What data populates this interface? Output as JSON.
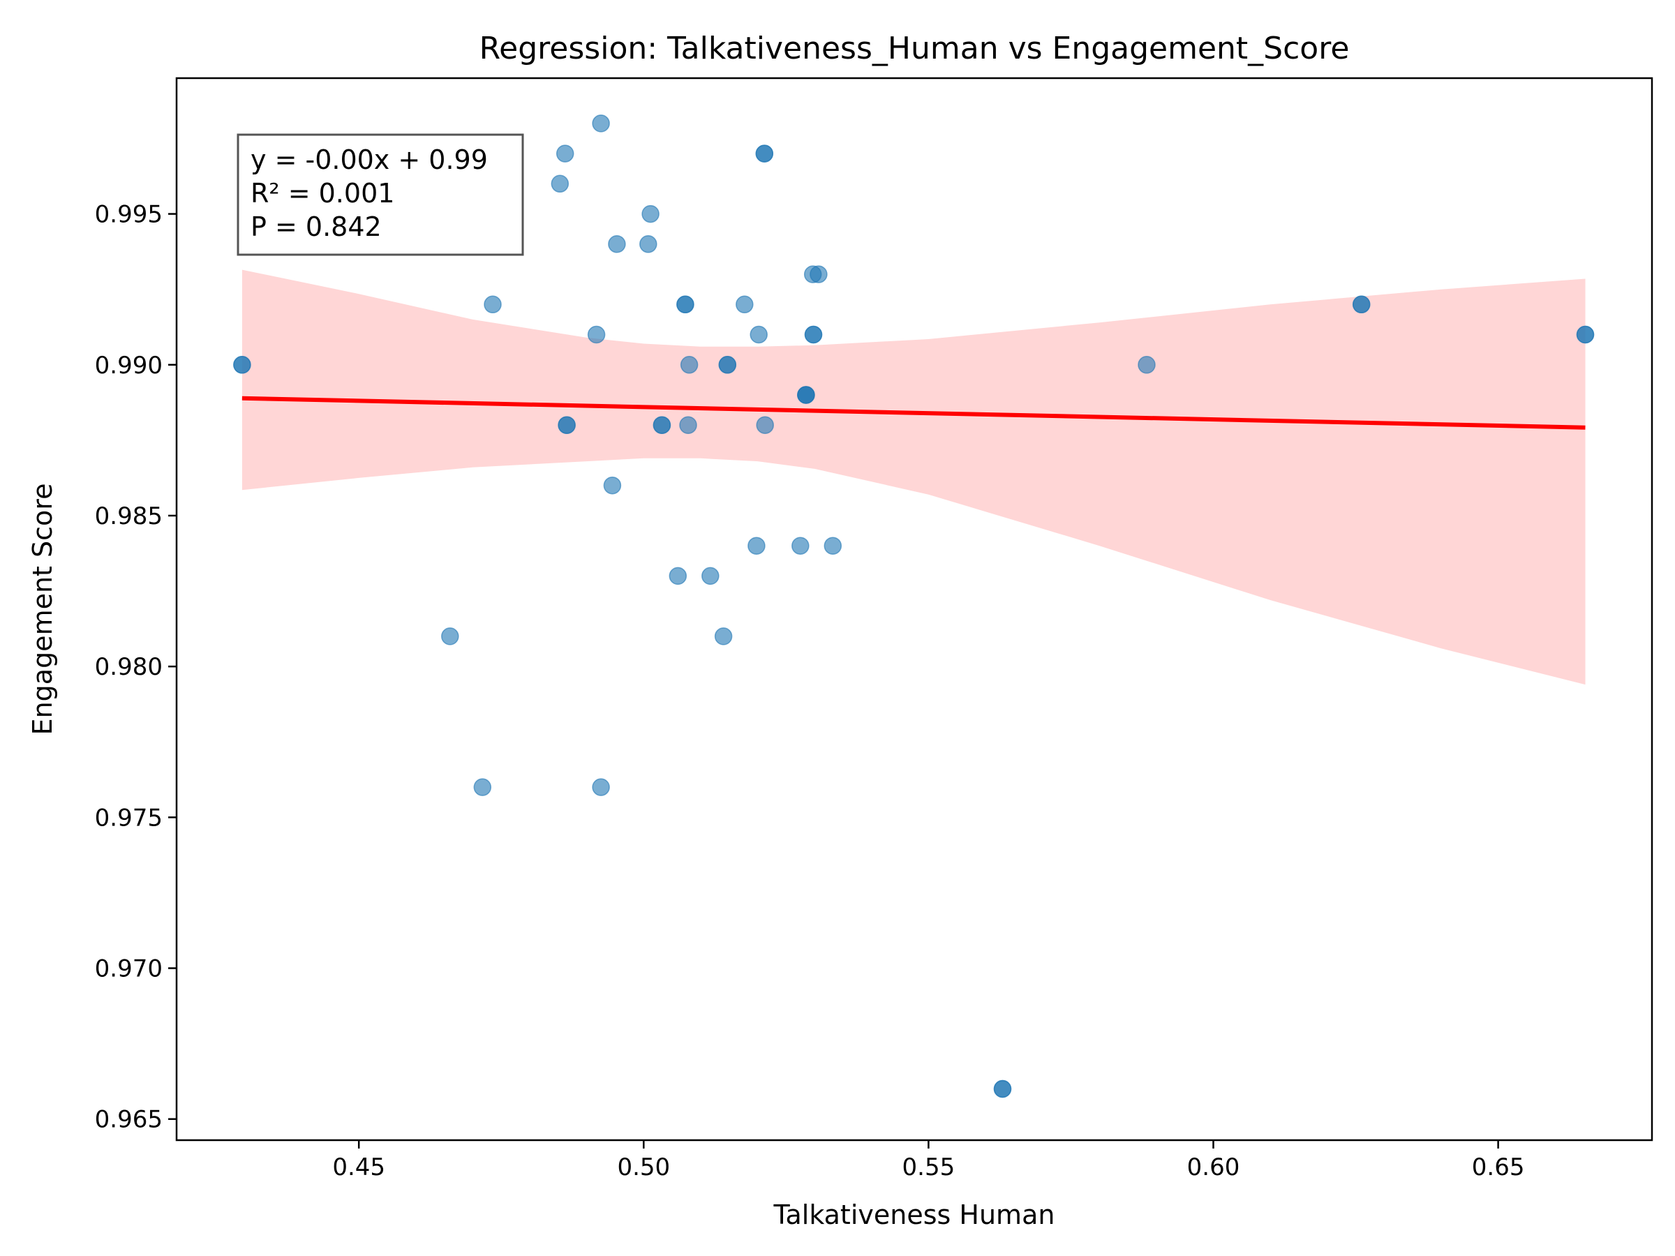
{
  "chart_data": {
    "type": "scatter",
    "title": "Regression: Talkativeness_Human vs Engagement_Score",
    "xlabel": "Talkativeness Human",
    "ylabel": "Engagement Score",
    "xlim": [
      0.418,
      0.677
    ],
    "ylim": [
      0.9643,
      0.9995
    ],
    "xticks": [
      0.45,
      0.5,
      0.55,
      0.6,
      0.65
    ],
    "xtick_labels": [
      "0.45",
      "0.50",
      "0.55",
      "0.60",
      "0.65"
    ],
    "yticks": [
      0.965,
      0.97,
      0.975,
      0.98,
      0.985,
      0.99,
      0.995
    ],
    "ytick_labels": [
      "0.965",
      "0.970",
      "0.975",
      "0.980",
      "0.985",
      "0.990",
      "0.995"
    ],
    "grid": false,
    "annotation": {
      "lines": [
        "y = -0.00x + 0.99",
        "R² = 0.001",
        "P = 0.842"
      ],
      "position": "top-left"
    },
    "points": [
      {
        "x": 0.4295,
        "y": 0.99
      },
      {
        "x": 0.4295,
        "y": 0.99
      },
      {
        "x": 0.466,
        "y": 0.981
      },
      {
        "x": 0.4717,
        "y": 0.976
      },
      {
        "x": 0.4735,
        "y": 0.992
      },
      {
        "x": 0.4853,
        "y": 0.996
      },
      {
        "x": 0.4862,
        "y": 0.997
      },
      {
        "x": 0.4865,
        "y": 0.988
      },
      {
        "x": 0.4865,
        "y": 0.988
      },
      {
        "x": 0.4917,
        "y": 0.991
      },
      {
        "x": 0.4925,
        "y": 0.998
      },
      {
        "x": 0.4925,
        "y": 0.976
      },
      {
        "x": 0.4945,
        "y": 0.986
      },
      {
        "x": 0.4953,
        "y": 0.994
      },
      {
        "x": 0.5008,
        "y": 0.994
      },
      {
        "x": 0.5012,
        "y": 0.995
      },
      {
        "x": 0.5032,
        "y": 0.988
      },
      {
        "x": 0.5032,
        "y": 0.988
      },
      {
        "x": 0.506,
        "y": 0.983
      },
      {
        "x": 0.5073,
        "y": 0.992
      },
      {
        "x": 0.5073,
        "y": 0.992
      },
      {
        "x": 0.5078,
        "y": 0.988
      },
      {
        "x": 0.508,
        "y": 0.99
      },
      {
        "x": 0.5117,
        "y": 0.983
      },
      {
        "x": 0.514,
        "y": 0.981
      },
      {
        "x": 0.5147,
        "y": 0.99
      },
      {
        "x": 0.5147,
        "y": 0.99
      },
      {
        "x": 0.5177,
        "y": 0.992
      },
      {
        "x": 0.5198,
        "y": 0.984
      },
      {
        "x": 0.5202,
        "y": 0.991
      },
      {
        "x": 0.5212,
        "y": 0.997
      },
      {
        "x": 0.5212,
        "y": 0.997
      },
      {
        "x": 0.5213,
        "y": 0.988
      },
      {
        "x": 0.5275,
        "y": 0.984
      },
      {
        "x": 0.5285,
        "y": 0.989
      },
      {
        "x": 0.5285,
        "y": 0.989
      },
      {
        "x": 0.5285,
        "y": 0.989
      },
      {
        "x": 0.5297,
        "y": 0.993
      },
      {
        "x": 0.5298,
        "y": 0.991
      },
      {
        "x": 0.5298,
        "y": 0.991
      },
      {
        "x": 0.5307,
        "y": 0.993
      },
      {
        "x": 0.5332,
        "y": 0.984
      },
      {
        "x": 0.563,
        "y": 0.966
      },
      {
        "x": 0.563,
        "y": 0.966
      },
      {
        "x": 0.5883,
        "y": 0.99
      },
      {
        "x": 0.626,
        "y": 0.992
      },
      {
        "x": 0.626,
        "y": 0.992
      },
      {
        "x": 0.6653,
        "y": 0.991
      },
      {
        "x": 0.6653,
        "y": 0.991
      }
    ],
    "regression_line": {
      "x": [
        0.4295,
        0.6653
      ],
      "y": [
        0.98889,
        0.98792
      ]
    },
    "confidence_band": {
      "x": [
        0.4295,
        0.45,
        0.47,
        0.49,
        0.5,
        0.51,
        0.52,
        0.53,
        0.55,
        0.58,
        0.61,
        0.64,
        0.6653
      ],
      "upper": [
        0.99315,
        0.99235,
        0.9915,
        0.9909,
        0.9907,
        0.9906,
        0.9906,
        0.99065,
        0.99085,
        0.9914,
        0.992,
        0.9925,
        0.99285
      ],
      "lower": [
        0.98585,
        0.98625,
        0.9866,
        0.9868,
        0.9869,
        0.9869,
        0.9868,
        0.98655,
        0.9857,
        0.984,
        0.9822,
        0.9806,
        0.9794
      ]
    },
    "colors": {
      "points": "#1f77b4",
      "regression_line": "#ff0000",
      "confidence_band": "#ffd6d6",
      "axes": "#000000"
    }
  }
}
